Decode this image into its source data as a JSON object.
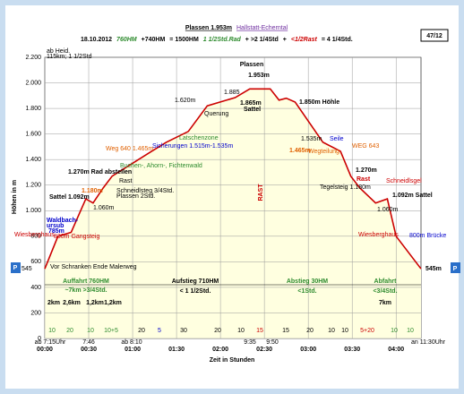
{
  "chart_data": {
    "type": "area",
    "title": "Plassen 1.953m",
    "subtitle": "Hallstatt-Echerntal",
    "badge": "47/12",
    "summary": [
      {
        "text": "18.10.2012",
        "color": "#000000"
      },
      {
        "text": "760HM",
        "color": "#2e8b2e"
      },
      {
        "text": "+740HM",
        "color": "#000000"
      },
      {
        "text": "= 1500HM",
        "color": "#000000"
      },
      {
        "text": "1 1/2Std.Rad",
        "color": "#2e8b2e"
      },
      {
        "text": "+ >2 1/4Std",
        "color": "#000000"
      },
      {
        "text": "+",
        "color": "#000000"
      },
      {
        "text": "<1/2Rast",
        "color": "#cc0000"
      },
      {
        "text": "= 4 1/4Std.",
        "color": "#000000"
      }
    ],
    "x_label": "Zeit in Stunden",
    "y_label": "Höhen in m",
    "x": [
      0,
      9,
      18,
      28,
      33,
      40,
      46,
      73,
      83,
      98,
      111,
      130,
      140,
      154,
      160,
      165,
      171,
      190,
      202,
      209,
      215,
      226,
      234,
      240,
      257
    ],
    "series": [
      {
        "name": "Höhenprofil",
        "color": "#cc0000",
        "fill": "#ffffe0",
        "values": [
          545,
          800,
          830,
          1092,
          1060,
          1180,
          1270,
          1465,
          1535,
          1620,
          1820,
          1885,
          1953,
          1953,
          1865,
          1880,
          1850,
          1535,
          1465,
          1270,
          1180,
          1060,
          1092,
          800,
          545
        ]
      }
    ],
    "xlim": [
      0,
      257
    ],
    "ylim": [
      0,
      2200
    ],
    "xticks": [
      {
        "value": 0,
        "label": "00:00"
      },
      {
        "value": 30,
        "label": "00:30"
      },
      {
        "value": 60,
        "label": "01:00"
      },
      {
        "value": 90,
        "label": "01:30"
      },
      {
        "value": 120,
        "label": "02:00"
      },
      {
        "value": 150,
        "label": "02:30"
      },
      {
        "value": 180,
        "label": "03:00"
      },
      {
        "value": 210,
        "label": "03:30"
      },
      {
        "value": 240,
        "label": "04:00"
      }
    ],
    "yticks": [
      0,
      200,
      400,
      600,
      800,
      {
        "value": 1000,
        "label": "1.000"
      },
      {
        "value": 1200,
        "label": "1.200"
      },
      {
        "value": 1400,
        "label": "1.400"
      },
      {
        "value": 1600,
        "label": "1.600"
      },
      {
        "value": 1800,
        "label": "1.800"
      },
      {
        "value": 2000,
        "label": "2.000"
      },
      {
        "value": 2200,
        "label": "2.200"
      }
    ],
    "grid": true,
    "annotations": [
      {
        "text": "Plassen",
        "color": "#000000"
      },
      {
        "text": "1.953m",
        "color": "#000000"
      },
      {
        "text": "ab Heid.",
        "color": "#000000"
      },
      {
        "text": "115km; 1 1/2Std",
        "color": "#000000"
      },
      {
        "text": "1.270m Rad abstellen",
        "color": "#000000"
      },
      {
        "text": "Sattel 1.092m",
        "color": "#000000"
      },
      {
        "text": "1.180m",
        "color": "#e06000"
      },
      {
        "text": "Rast",
        "color": "#000000"
      },
      {
        "text": "Schneidlsteg 3/4Std.",
        "color": "#000000"
      },
      {
        "text": "Plassen 2Std.",
        "color": "#000000"
      },
      {
        "text": "1.060m",
        "color": "#000000"
      },
      {
        "text": "Waldbach-",
        "color": "#0000cc"
      },
      {
        "text": "ursub",
        "color": "#0000cc"
      },
      {
        "text": "785m",
        "color": "#0000cc"
      },
      {
        "text": "Wiesberghaus",
        "color": "#cc0000"
      },
      {
        "text": "830m Gangsteig",
        "color": "#cc0000"
      },
      {
        "text": "Weg 640 1.465m",
        "color": "#e06000"
      },
      {
        "text": "Latschenzone",
        "color": "#2e8b2e"
      },
      {
        "text": "Buchen-, Ahorn-, Fichtenwald",
        "color": "#2e8b2e"
      },
      {
        "text": "Sicherungen 1.515m-1.535m",
        "color": "#0000cc"
      },
      {
        "text": "1.620m",
        "color": "#000000"
      },
      {
        "text": "Querung",
        "color": "#000000"
      },
      {
        "text": "1.885",
        "color": "#000000"
      },
      {
        "text": "1.865m",
        "color": "#000000"
      },
      {
        "text": "Sattel",
        "color": "#000000"
      },
      {
        "text": "1.850m Höhle",
        "color": "#000000"
      },
      {
        "text": "1.535m",
        "color": "#000000"
      },
      {
        "text": "Seile",
        "color": "#0000cc"
      },
      {
        "text": "1.465m",
        "color": "#e06000"
      },
      {
        "text": "Wegteilung",
        "color": "#e06000"
      },
      {
        "text": "WEG 643",
        "color": "#e06000"
      },
      {
        "text": "1.270m",
        "color": "#000000"
      },
      {
        "text": "Rast",
        "color": "#cc0000"
      },
      {
        "text": "Tegelsteig 1.180m",
        "color": "#000000"
      },
      {
        "text": "Schneidlsgel",
        "color": "#cc0000"
      },
      {
        "text": "1.060m",
        "color": "#000000"
      },
      {
        "text": "1.092m Sattel",
        "color": "#000000"
      },
      {
        "text": "Wiesberghaus",
        "color": "#cc0000"
      },
      {
        "text": "800m Brücke",
        "color": "#0000cc"
      },
      {
        "text": "RAST",
        "color": "#cc0000"
      },
      {
        "text": "Vor Schranken Ende Malerweg",
        "color": "#000000"
      },
      {
        "text": "P",
        "color": "#ffffff"
      },
      {
        "text": "545",
        "color": "#000000"
      },
      {
        "text": "P",
        "color": "#ffffff"
      },
      {
        "text": "545m",
        "color": "#000000"
      }
    ],
    "sections": [
      {
        "text": "Auffahrt 760HM",
        "color": "#2e8b2e"
      },
      {
        "text": "~7km  >3/4Std.",
        "color": "#2e8b2e"
      },
      {
        "text": "Aufstieg 710HM",
        "color": "#000000"
      },
      {
        "text": "< 1 1/2Std.",
        "color": "#000000"
      },
      {
        "text": "Abstieg 30HM",
        "color": "#2e8b2e"
      },
      {
        "text": "<1Std.",
        "color": "#2e8b2e"
      },
      {
        "text": "Abfahrt",
        "color": "#2e8b2e"
      },
      {
        "text": "<3/4Std.",
        "color": "#2e8b2e"
      }
    ],
    "distances": [
      "2km",
      "2,6km",
      "1,2km",
      "1,2km",
      "7km"
    ],
    "segments": [
      {
        "text": "10",
        "color": "#2e8b2e"
      },
      {
        "text": "20",
        "color": "#2e8b2e"
      },
      {
        "text": "10",
        "color": "#2e8b2e"
      },
      {
        "text": "10+5",
        "color": "#2e8b2e"
      },
      {
        "text": "20",
        "color": "#000000"
      },
      {
        "text": "5",
        "color": "#0000cc"
      },
      {
        "text": "30",
        "color": "#000000"
      },
      {
        "text": "20",
        "color": "#000000"
      },
      {
        "text": "10",
        "color": "#000000"
      },
      {
        "text": "15",
        "color": "#cc0000"
      },
      {
        "text": "15",
        "color": "#000000"
      },
      {
        "text": "20",
        "color": "#000000"
      },
      {
        "text": "10",
        "color": "#000000"
      },
      {
        "text": "10",
        "color": "#000000"
      },
      {
        "text": "5+20",
        "color": "#cc0000"
      },
      {
        "text": "10",
        "color": "#2e8b2e"
      },
      {
        "text": "10",
        "color": "#2e8b2e"
      }
    ],
    "times": [
      "ab 7:15Uhr",
      "7:46",
      "ab 8:10",
      "9:35",
      "9:50",
      "an 11:30Uhr"
    ]
  }
}
